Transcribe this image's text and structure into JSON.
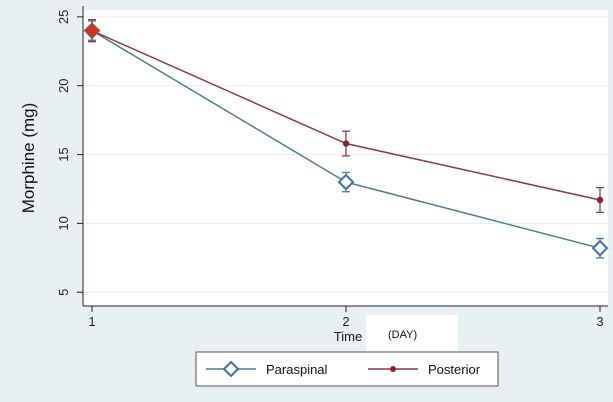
{
  "chart_data": {
    "type": "line",
    "title": "",
    "xlabel": "Time",
    "x_unit_label": "(DAY)",
    "ylabel": "Morphine (mg)",
    "x": [
      1,
      2,
      3
    ],
    "xticks": [
      "1",
      "2",
      "3"
    ],
    "xlim": [
      1,
      3
    ],
    "ylim": [
      4,
      25.5
    ],
    "yticks": [
      5,
      10,
      15,
      20,
      25
    ],
    "grid": true,
    "legend_position": "bottom",
    "series": [
      {
        "name": "Paraspinal",
        "values": [
          24.0,
          13.0,
          8.2
        ],
        "error_low": [
          23.3,
          12.3,
          7.5
        ],
        "error_high": [
          24.7,
          13.7,
          8.9
        ],
        "color": "#4a7d8c",
        "marker": "hollow-diamond",
        "marker_color": "#3b6fb0"
      },
      {
        "name": "Posterior",
        "values": [
          24.0,
          15.8,
          11.7
        ],
        "error_low": [
          23.2,
          14.9,
          10.8
        ],
        "error_high": [
          24.8,
          16.7,
          12.6
        ],
        "color": "#8c3a46",
        "marker": "dot",
        "marker_color": "#8b2233"
      }
    ],
    "highlight_point": {
      "x": 1,
      "value": 24.0,
      "color": "#c83a1c"
    }
  }
}
